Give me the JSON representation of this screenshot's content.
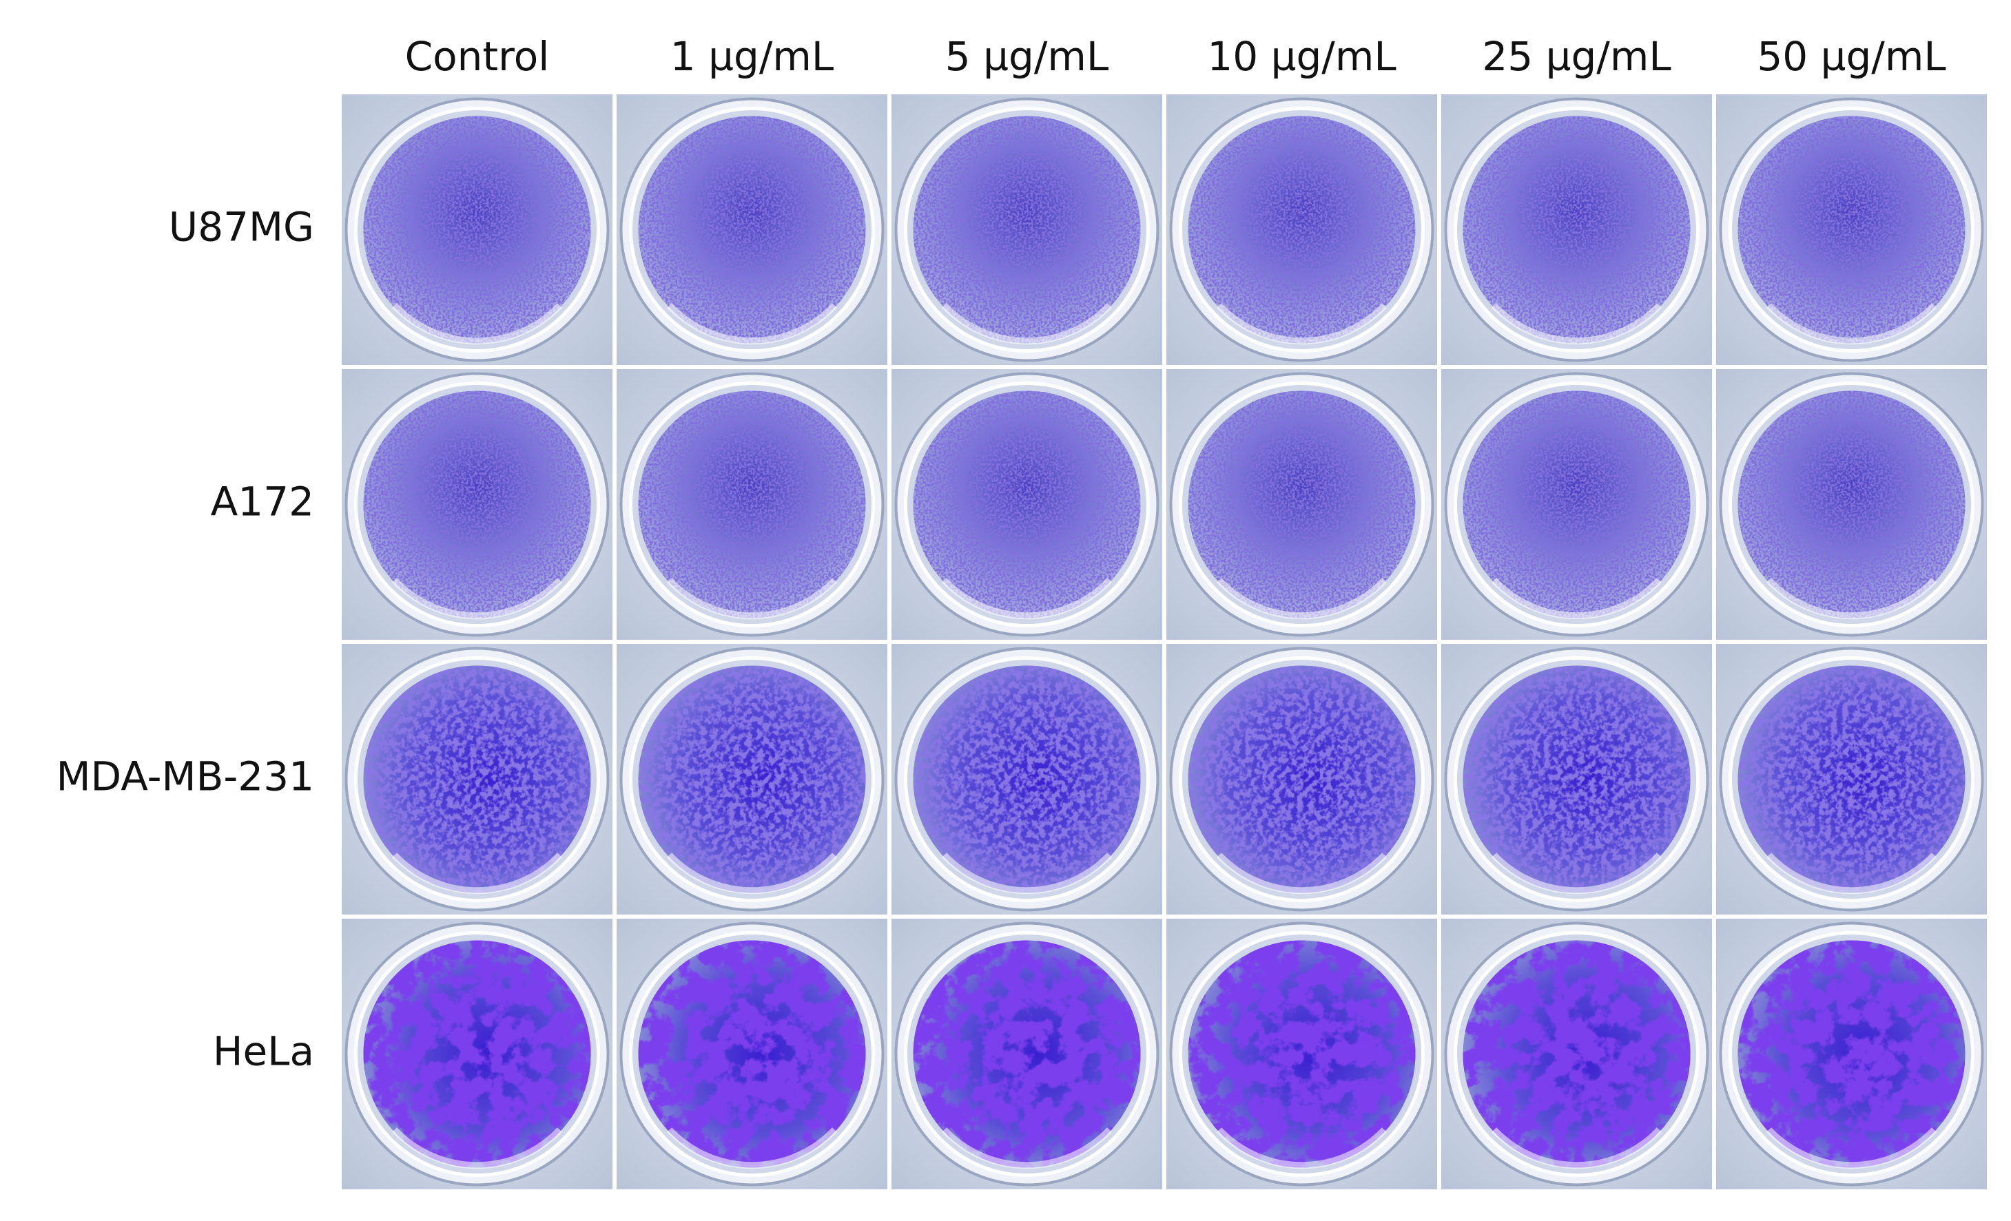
{
  "columns": [
    "Control",
    "1 µg/mL",
    "5 µg/mL",
    "10 µg/mL",
    "25 µg/mL",
    "50 µg/mL"
  ],
  "rows": [
    "U87MG",
    "A172",
    "MDA-MB-231",
    "HeLa"
  ]
}
